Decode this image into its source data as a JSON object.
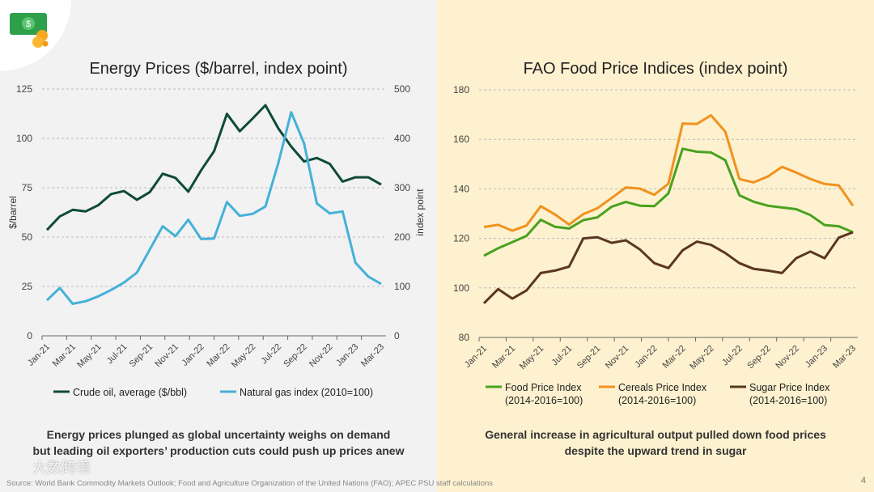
{
  "page_number": "4",
  "source": "Source: World Bank Commodity Markets Outlook; Food and Agriculture Organization of the United Nations (FAO); APEC PSU staff calculations",
  "watermark": "大数跨境",
  "colors": {
    "oil": "#0f4a38",
    "gas": "#45b0d8",
    "food": "#4aa11e",
    "cereals": "#f0921f",
    "sugar": "#5a3620"
  },
  "chart_data": [
    {
      "type": "line",
      "title": "Energy Prices ($/barrel, index point)",
      "ylabel": "$/barrel",
      "y2label": "index point",
      "ylim": [
        0,
        125
      ],
      "y2lim": [
        0,
        500
      ],
      "yticks": [
        "0",
        "25",
        "50",
        "75",
        "100",
        "125"
      ],
      "y2ticks": [
        "0",
        "100",
        "200",
        "300",
        "400",
        "500"
      ],
      "grid": true,
      "legend": "bottom",
      "x": [
        "Jan-21",
        "Feb-21",
        "Mar-21",
        "Apr-21",
        "May-21",
        "Jun-21",
        "Jul-21",
        "Aug-21",
        "Sep-21",
        "Oct-21",
        "Nov-21",
        "Dec-21",
        "Jan-22",
        "Feb-22",
        "Mar-22",
        "Apr-22",
        "May-22",
        "Jun-22",
        "Jul-22",
        "Aug-22",
        "Sep-22",
        "Oct-22",
        "Nov-22",
        "Dec-22",
        "Jan-23",
        "Feb-23",
        "Mar-23"
      ],
      "xticks": [
        "Jan-21",
        "Mar-21",
        "May-21",
        "Jul-21",
        "Sep-21",
        "Nov-21",
        "Jan-22",
        "Mar-22",
        "May-22",
        "Jul-22",
        "Sep-22",
        "Nov-22",
        "Jan-23",
        "Mar-23"
      ],
      "series": [
        {
          "name": "Crude oil, average ($/bbl)",
          "axis": "left",
          "color": "#0f4a38",
          "values": [
            53.6,
            60.5,
            63.8,
            63.0,
            66.2,
            71.8,
            73.3,
            68.9,
            72.8,
            82.1,
            80.0,
            73.0,
            83.9,
            93.5,
            112.4,
            103.6,
            110.1,
            116.8,
            105.1,
            95.9,
            88.3,
            90.1,
            87.1,
            78.1,
            80.3,
            80.3,
            76.6
          ]
        },
        {
          "name": "Natural gas index (2010=100)",
          "axis": "right",
          "color": "#45b0d8",
          "values": [
            72,
            97,
            65,
            70,
            80,
            93,
            108,
            128,
            175,
            222,
            202,
            235,
            196,
            197,
            271,
            243,
            247,
            262,
            350,
            453,
            390,
            268,
            248,
            252,
            148,
            120,
            105
          ]
        }
      ],
      "subtitle": [
        "Energy prices plunged as global uncertainty weighs on demand",
        "but leading oil exporters’ production cuts could push up prices anew"
      ]
    },
    {
      "type": "line",
      "title": "FAO Food Price Indices (index point)",
      "ylim": [
        80,
        180
      ],
      "yticks": [
        "80",
        "100",
        "120",
        "140",
        "160",
        "180"
      ],
      "grid": true,
      "legend": "bottom",
      "xticks": [
        "Jan-21",
        "Mar-21",
        "May-21",
        "Jul-21",
        "Sep-21",
        "Nov-21",
        "Jan-22",
        "Mar-22",
        "May-22",
        "Jul-22",
        "Sep-22",
        "Nov-22",
        "Jan-23",
        "Mar-23"
      ],
      "series": [
        {
          "name": "Food Price Index",
          "name2": "(2014-2016=100)",
          "color": "#4aa11e",
          "values": [
            113,
            116,
            118.5,
            121,
            127.5,
            124.7,
            124,
            127.4,
            128.5,
            132.8,
            134.7,
            133.2,
            133,
            138.2,
            156.2,
            155,
            154.7,
            151.6,
            137.4,
            134.8,
            133.2,
            132.5,
            131.8,
            129.4,
            125.4,
            124.9,
            122.5
          ]
        },
        {
          "name": "Cereals Price Index",
          "name2": "(2014-2016=100)",
          "color": "#f0921f",
          "values": [
            124.6,
            125.5,
            123.1,
            125.2,
            133,
            129.7,
            125.6,
            129.8,
            132.2,
            136.3,
            140.6,
            140.1,
            137.6,
            142.1,
            166.4,
            166.2,
            169.7,
            163.1,
            144,
            142.6,
            145,
            148.9,
            146.6,
            144,
            142,
            141.4,
            133.2
          ]
        },
        {
          "name": "Sugar Price Index",
          "name2": "(2014-2016=100)",
          "color": "#5a3620",
          "values": [
            93.8,
            99.5,
            95.7,
            99,
            106,
            107,
            108.6,
            120,
            120.5,
            118.2,
            119.2,
            115.5,
            110,
            108,
            115.2,
            118.7,
            117.4,
            114.1,
            110,
            107.7,
            107,
            106,
            112,
            114.7,
            112,
            120.3,
            122.5
          ]
        }
      ],
      "subtitle": [
        "General increase in agricultural output pulled down food prices",
        "despite the upward trend in sugar"
      ]
    }
  ]
}
